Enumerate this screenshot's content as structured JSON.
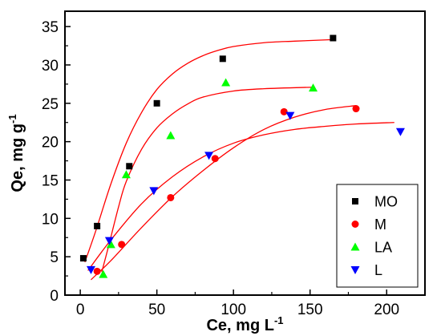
{
  "chart_data": {
    "type": "scatter",
    "title": "",
    "xlabel": "Ce, mg L",
    "xlabel_sup": "-1",
    "ylabel": "Qe, mg g",
    "ylabel_sup": "-1",
    "xlim": [
      -10,
      225
    ],
    "ylim": [
      0,
      37
    ],
    "xticks": [
      0,
      50,
      100,
      150,
      200
    ],
    "yticks": [
      0,
      5,
      10,
      15,
      20,
      25,
      30,
      35
    ],
    "grid": false,
    "legend_position": "bottom-right",
    "series": [
      {
        "name": "MO",
        "marker": "square",
        "color": "#000000",
        "points": [
          [
            2,
            4.8
          ],
          [
            11,
            9.0
          ],
          [
            32,
            16.8
          ],
          [
            50,
            25.0
          ],
          [
            93,
            30.8
          ],
          [
            165,
            33.5
          ]
        ],
        "fit": [
          [
            3,
            4.3
          ],
          [
            10,
            8.3
          ],
          [
            20,
            14.5
          ],
          [
            30,
            19.8
          ],
          [
            40,
            23.8
          ],
          [
            50,
            26.8
          ],
          [
            60,
            28.8
          ],
          [
            70,
            30.2
          ],
          [
            80,
            31.2
          ],
          [
            90,
            31.9
          ],
          [
            100,
            32.4
          ],
          [
            120,
            32.9
          ],
          [
            140,
            33.1
          ],
          [
            165,
            33.3
          ]
        ]
      },
      {
        "name": "M",
        "marker": "circle",
        "color": "#ff0000",
        "points": [
          [
            11,
            3.1
          ],
          [
            27,
            6.6
          ],
          [
            59,
            12.7
          ],
          [
            88,
            17.8
          ],
          [
            133,
            23.9
          ],
          [
            180,
            24.3
          ]
        ],
        "fit": [
          [
            7,
            2.0
          ],
          [
            20,
            4.5
          ],
          [
            40,
            8.8
          ],
          [
            60,
            12.8
          ],
          [
            80,
            16.2
          ],
          [
            100,
            19.2
          ],
          [
            120,
            21.6
          ],
          [
            140,
            23.2
          ],
          [
            160,
            24.2
          ],
          [
            180,
            24.7
          ]
        ]
      },
      {
        "name": "LA",
        "marker": "triangle-up",
        "color": "#00ff00",
        "points": [
          [
            15,
            2.7
          ],
          [
            20,
            6.6
          ],
          [
            30,
            15.7
          ],
          [
            59,
            20.8
          ],
          [
            95,
            27.7
          ],
          [
            152,
            27.0
          ]
        ],
        "fit": [
          [
            14,
            3.0
          ],
          [
            18,
            6.0
          ],
          [
            25,
            11.5
          ],
          [
            30,
            14.8
          ],
          [
            40,
            19.0
          ],
          [
            50,
            21.8
          ],
          [
            60,
            23.6
          ],
          [
            70,
            24.9
          ],
          [
            80,
            25.8
          ],
          [
            100,
            26.6
          ],
          [
            120,
            26.9
          ],
          [
            152,
            27.1
          ]
        ]
      },
      {
        "name": "L",
        "marker": "triangle-down",
        "color": "#0000ff",
        "points": [
          [
            7,
            3.3
          ],
          [
            19,
            7.1
          ],
          [
            48,
            13.6
          ],
          [
            84,
            18.2
          ],
          [
            137,
            23.4
          ],
          [
            209,
            21.3
          ]
        ],
        "fit": [
          [
            5,
            3.2
          ],
          [
            20,
            7.2
          ],
          [
            40,
            11.9
          ],
          [
            60,
            15.4
          ],
          [
            80,
            18.0
          ],
          [
            100,
            19.8
          ],
          [
            120,
            20.9
          ],
          [
            140,
            21.6
          ],
          [
            160,
            22.0
          ],
          [
            180,
            22.3
          ],
          [
            205,
            22.5
          ]
        ]
      }
    ],
    "fit_color": "#ff0000"
  }
}
